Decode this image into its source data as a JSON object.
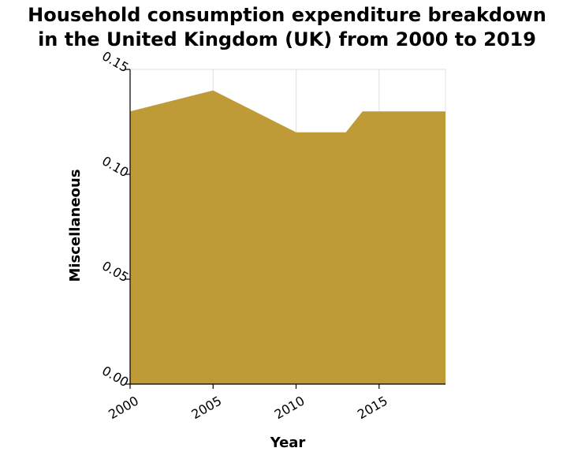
{
  "chart_data": {
    "type": "area",
    "title_lines": [
      "Household consumption expenditure breakdown",
      "in the United Kingdom (UK) from 2000 to 2019"
    ],
    "xlabel": "Year",
    "ylabel": "Miscellaneous",
    "xlim": [
      2000,
      2019
    ],
    "ylim": [
      0,
      0.15
    ],
    "x_ticks": [
      2000,
      2005,
      2010,
      2015
    ],
    "x_tick_labels": [
      "2000",
      "2005",
      "2010",
      "2015"
    ],
    "y_ticks": [
      0,
      0.05,
      0.1,
      0.15
    ],
    "y_tick_labels": [
      "0.00",
      "0.05",
      "0.10",
      "0.15"
    ],
    "grid": true,
    "series": [
      {
        "x": [
          2000,
          2005,
          2010,
          2013,
          2014,
          2019
        ],
        "values": [
          0.13,
          0.14,
          0.12,
          0.12,
          0.13,
          0.13
        ],
        "color": "#bf9b38"
      }
    ]
  }
}
